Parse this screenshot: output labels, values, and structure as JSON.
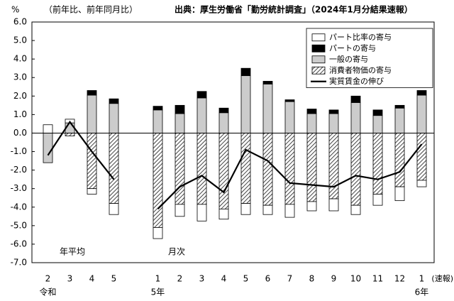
{
  "chart_data": {
    "type": "bar_line",
    "title": "出典：厚生労働省「勤労統計調査」（2024年1月分結果速報）",
    "subtitle": "（前年比、前年同月比）",
    "y_unit": "%",
    "categories": [
      "2",
      "3",
      "4",
      "5",
      null,
      "1",
      "2",
      "3",
      "4",
      "5",
      "6",
      "7",
      "8",
      "9",
      "10",
      "11",
      "12",
      "1"
    ],
    "group_labels": {
      "era_reiwa": "令和",
      "year_5": "5年",
      "year_6": "6年",
      "preliminary": "(速報)",
      "annual_average": "年平均",
      "monthly": "月次"
    },
    "series": [
      {
        "name": "パート比率の寄与",
        "color": "#ffffff",
        "values": [
          0.45,
          0.2,
          -0.3,
          -0.6,
          null,
          -0.6,
          -0.65,
          -0.9,
          -0.55,
          -0.6,
          -0.5,
          -0.7,
          -0.5,
          -0.65,
          -0.5,
          -0.6,
          -0.75,
          -0.35
        ]
      },
      {
        "name": "パートの寄与",
        "color": "#000000",
        "values": [
          0,
          0,
          0.25,
          0.25,
          null,
          0.2,
          0.45,
          0.35,
          0.25,
          0.4,
          0.15,
          0.1,
          0.25,
          0.2,
          0.35,
          0.3,
          0.15,
          0.25
        ]
      },
      {
        "name": "一般の寄与",
        "color": "#cccccc",
        "values": [
          -1.6,
          0.55,
          2.05,
          1.6,
          null,
          1.25,
          1.05,
          1.9,
          1.1,
          3.1,
          2.65,
          1.7,
          1.05,
          1.05,
          1.65,
          0.95,
          1.35,
          2.05
        ]
      },
      {
        "name": "消費者物価の寄与",
        "color": "#555555",
        "pattern": "hatch",
        "values": [
          0,
          -0.15,
          -3.0,
          -3.8,
          null,
          -5.1,
          -3.85,
          -3.85,
          -4.1,
          -3.8,
          -3.9,
          -3.85,
          -3.7,
          -3.55,
          -3.9,
          -3.3,
          -2.9,
          -2.55
        ]
      },
      {
        "name": "実質賃金の伸び",
        "color": "#000000",
        "type": "line",
        "values": [
          -1.2,
          0.6,
          -1.0,
          -2.5,
          null,
          -4.1,
          -2.9,
          -2.3,
          -3.2,
          -0.9,
          -1.5,
          -2.7,
          -2.8,
          -2.9,
          -2.3,
          -2.5,
          -2.1,
          -0.6
        ]
      }
    ],
    "ylim": [
      -7,
      6
    ],
    "yticks": [
      {
        "value": 6,
        "label": "6.0"
      },
      {
        "value": 5,
        "label": "5.0"
      },
      {
        "value": 4,
        "label": "4.0"
      },
      {
        "value": 3,
        "label": "3.0"
      },
      {
        "value": 2,
        "label": "2.0"
      },
      {
        "value": 1,
        "label": "1.0"
      },
      {
        "value": 0,
        "label": "0.0"
      },
      {
        "value": -1,
        "label": "-1.0"
      },
      {
        "value": -2,
        "label": "-2.0"
      },
      {
        "value": -3,
        "label": "-3.0"
      },
      {
        "value": -4,
        "label": "-4.0"
      },
      {
        "value": -5,
        "label": "-5.0"
      },
      {
        "value": -6,
        "label": "-6.0"
      },
      {
        "value": -7,
        "label": "-7.0"
      }
    ],
    "grid": false,
    "legend": "upper right"
  }
}
